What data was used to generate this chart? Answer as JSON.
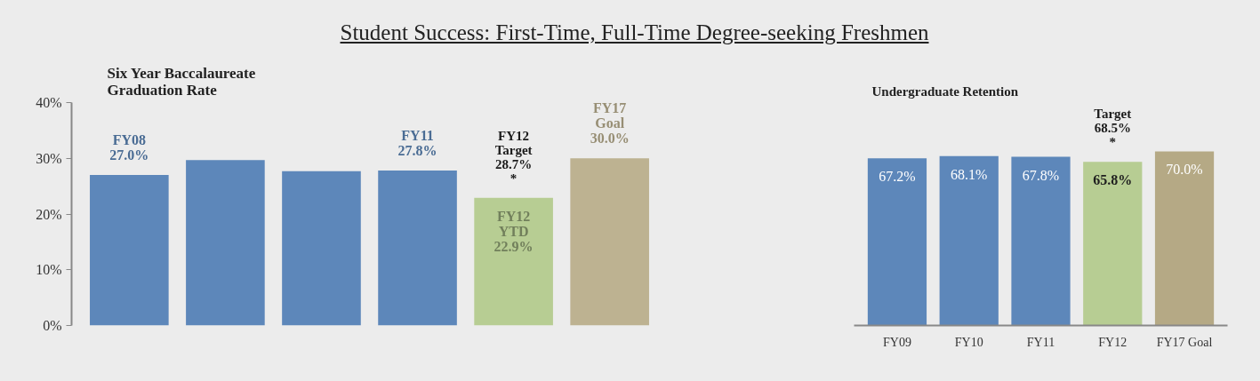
{
  "chart_data": [
    {
      "type": "bar",
      "title": "Six Year Baccalaureate\nGraduation Rate",
      "categories": [
        null,
        null,
        null,
        null,
        null,
        null
      ],
      "values": [
        27.0,
        29.7,
        27.7,
        27.8,
        22.9,
        30.0
      ],
      "colors": [
        "#5d87ba",
        "#5d87ba",
        "#5d87ba",
        "#5d87ba",
        "#b7cd93",
        "#bdb291"
      ],
      "value_labels": [
        "FY08\n27.0%",
        null,
        null,
        "FY11\n27.8%",
        "FY12\nYTD\n22.9%",
        "FY17\nGoal\n30.0%"
      ],
      "ylim": [
        0,
        40
      ],
      "yticks": [
        {
          "value": 0,
          "label": "0%"
        },
        {
          "value": 10,
          "label": "10%"
        },
        {
          "value": 20,
          "label": "20%"
        },
        {
          "value": 30,
          "label": "30%"
        },
        {
          "value": 40,
          "label": "40%"
        }
      ],
      "tick_labels": "y",
      "grid": false,
      "annotations": [
        "Student Success: First-Time, Full-Time Degree-seeking Freshmen",
        "FY12\nTarget\n28.7%\n*"
      ]
    },
    {
      "type": "bar",
      "title": "Undergraduate Retention",
      "categories": [
        "FY09",
        "FY10",
        "FY11",
        "FY12",
        "FY17 Goal"
      ],
      "values": [
        67.2,
        68.1,
        67.8,
        65.8,
        70.0
      ],
      "colors": [
        "#5d87ba",
        "#5d87ba",
        "#5d87ba",
        "#b7cd93",
        "#b5a985"
      ],
      "value_labels": [
        "67.2%",
        "68.1%",
        "67.8%",
        "65.8%",
        "70.0%"
      ],
      "tick_labels": "x",
      "grid": false,
      "annotations": [
        "Target\n68.5%\n*"
      ]
    }
  ]
}
